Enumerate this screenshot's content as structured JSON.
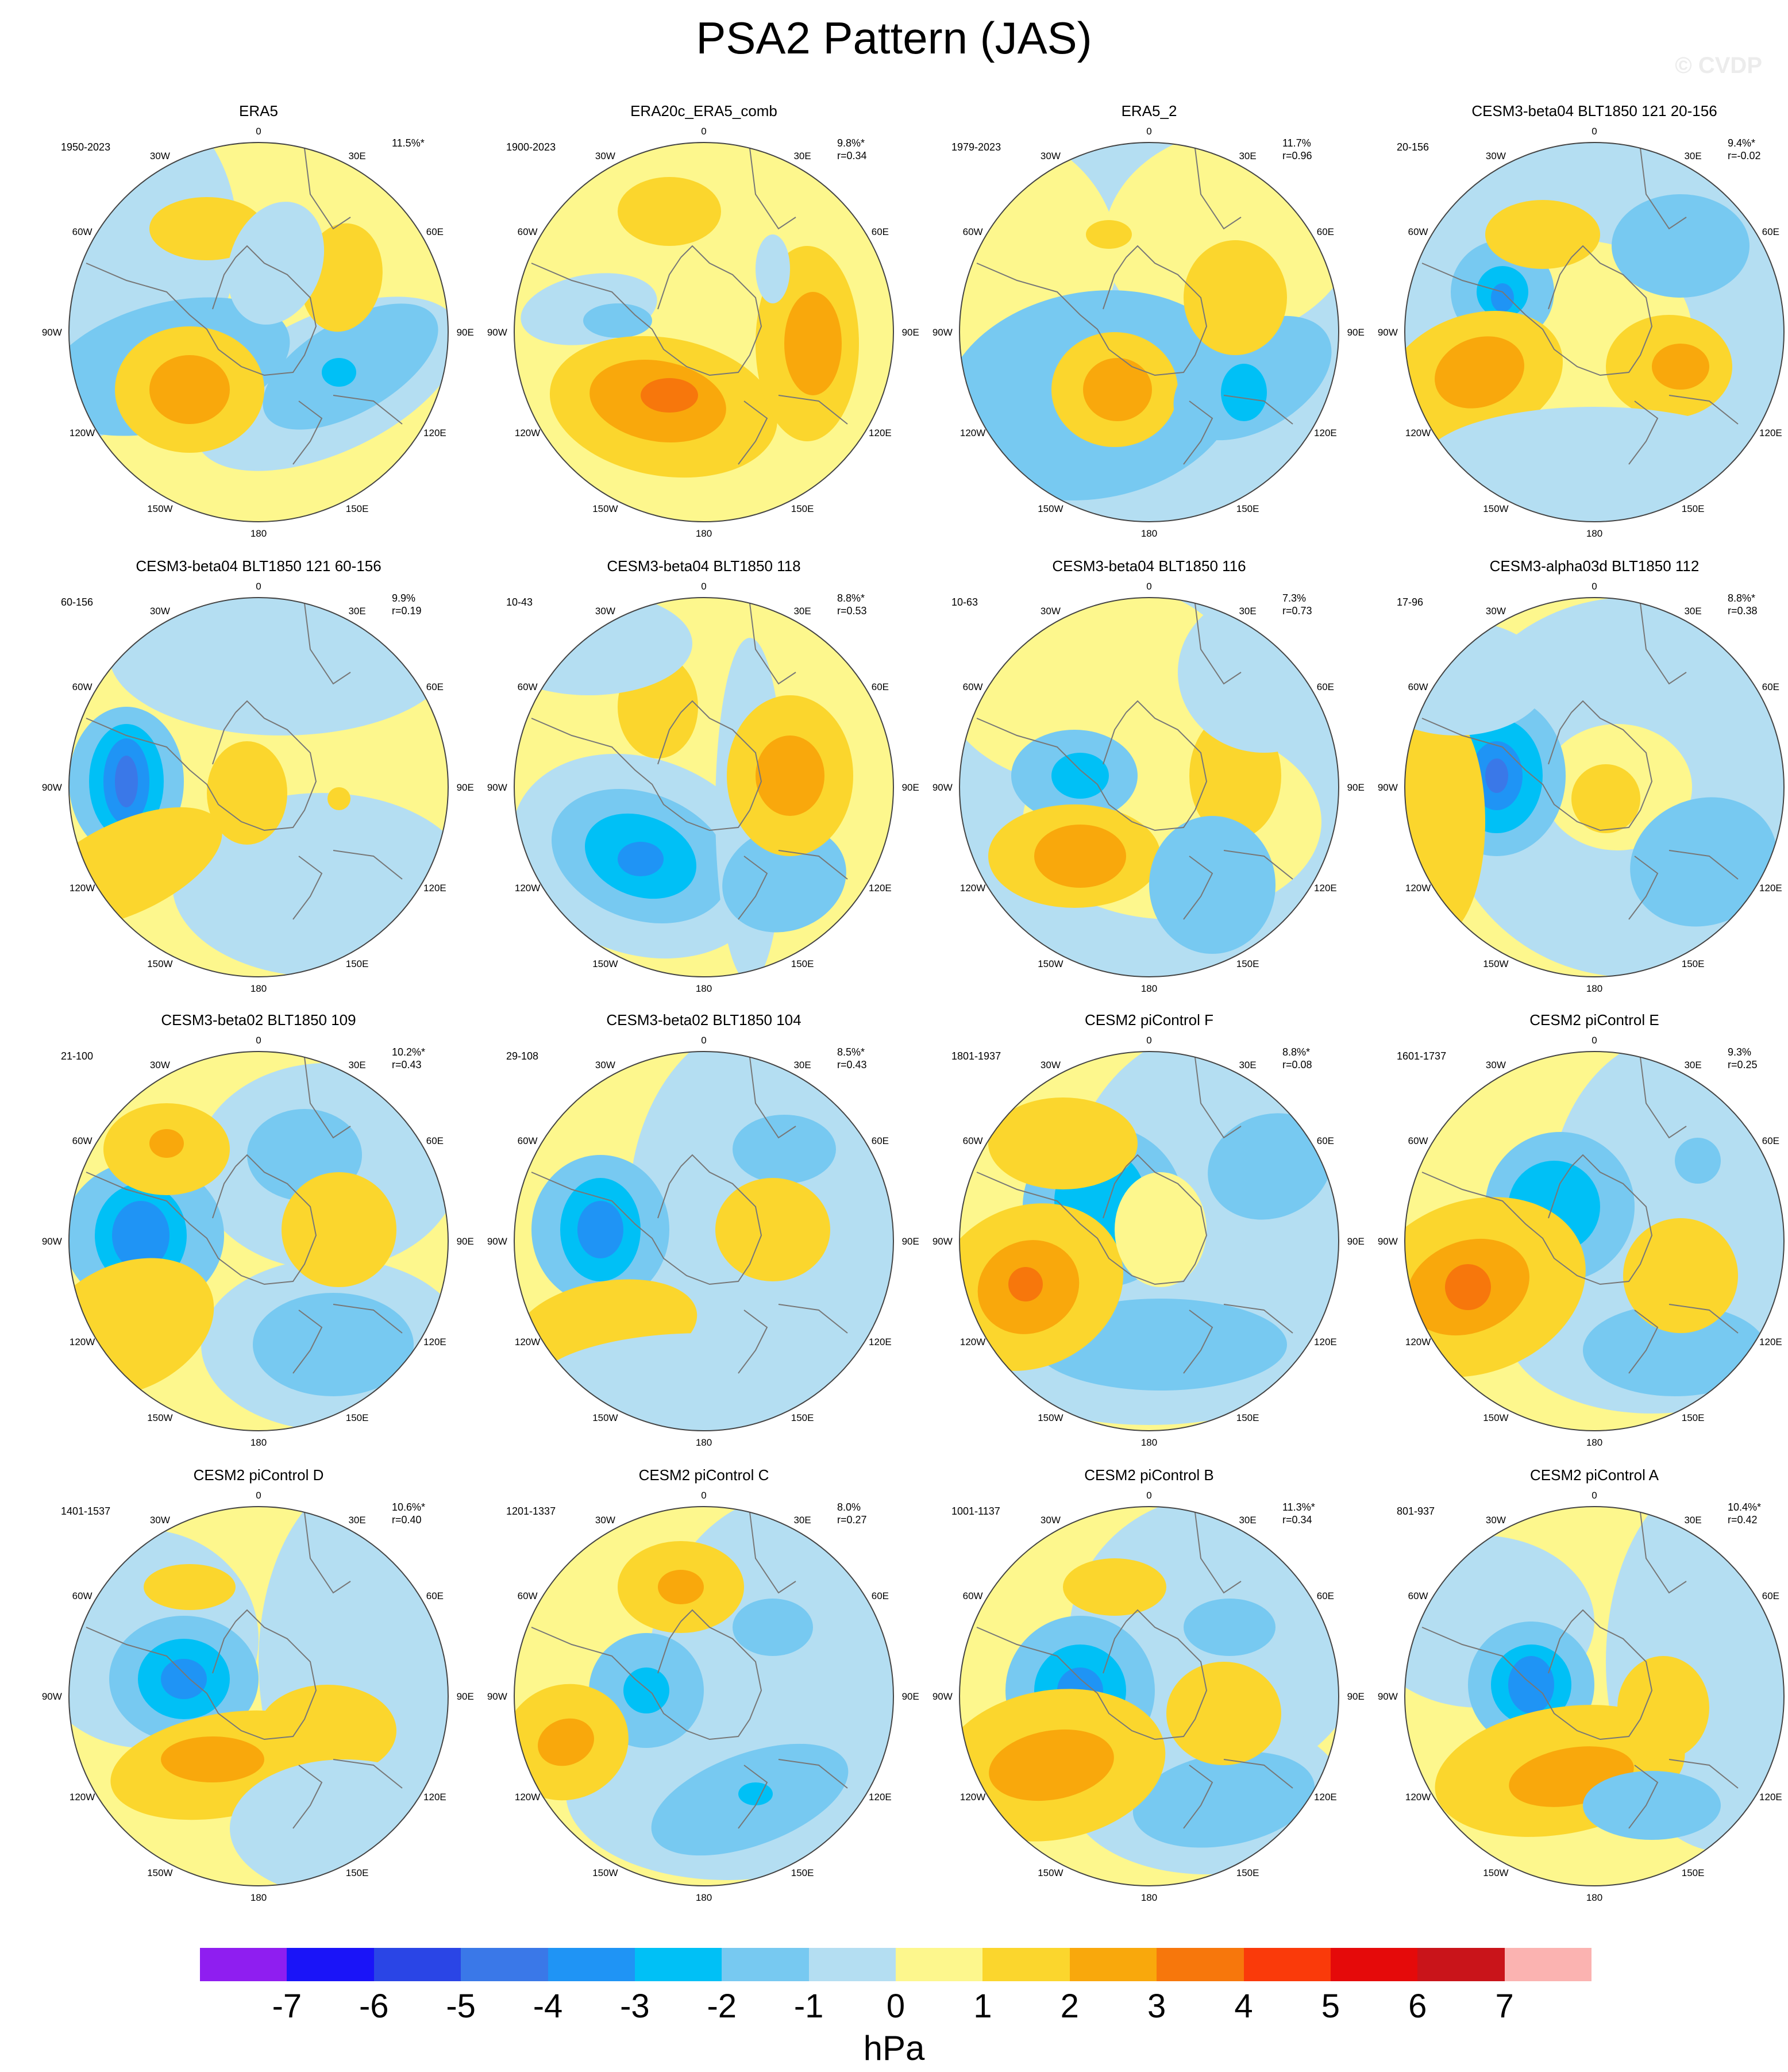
{
  "title": "PSA2 Pattern (JAS)",
  "watermark": "© CVDP",
  "lon_labels": [
    "0",
    "30E",
    "60E",
    "90E",
    "120E",
    "150E",
    "180",
    "150W",
    "120W",
    "90W",
    "60W",
    "30W"
  ],
  "panels": [
    {
      "title": "ERA5",
      "years": "1950-2023",
      "pct": "11.5%*",
      "r": ""
    },
    {
      "title": "ERA20c_ERA5_comb",
      "years": "1900-2023",
      "pct": "9.8%*",
      "r": "r=0.34"
    },
    {
      "title": "ERA5_2",
      "years": "1979-2023",
      "pct": "11.7%",
      "r": "r=0.96"
    },
    {
      "title": "CESM3-beta04 BLT1850 121 20-156",
      "years": "20-156",
      "pct": "9.4%*",
      "r": "r=-0.02"
    },
    {
      "title": "CESM3-beta04 BLT1850 121 60-156",
      "years": "60-156",
      "pct": "9.9%",
      "r": "r=0.19"
    },
    {
      "title": "CESM3-beta04 BLT1850 118",
      "years": "10-43",
      "pct": "8.8%*",
      "r": "r=0.53"
    },
    {
      "title": "CESM3-beta04 BLT1850 116",
      "years": "10-63",
      "pct": "7.3%",
      "r": "r=0.73"
    },
    {
      "title": "CESM3-alpha03d BLT1850 112",
      "years": "17-96",
      "pct": "8.8%*",
      "r": "r=0.38"
    },
    {
      "title": "CESM3-beta02 BLT1850 109",
      "years": "21-100",
      "pct": "10.2%*",
      "r": "r=0.43"
    },
    {
      "title": "CESM3-beta02 BLT1850 104",
      "years": "29-108",
      "pct": "8.5%*",
      "r": "r=0.43"
    },
    {
      "title": "CESM2 piControl F",
      "years": "1801-1937",
      "pct": "8.8%*",
      "r": "r=0.08"
    },
    {
      "title": "CESM2 piControl E",
      "years": "1601-1737",
      "pct": "9.3%",
      "r": "r=0.25"
    },
    {
      "title": "CESM2 piControl D",
      "years": "1401-1537",
      "pct": "10.6%*",
      "r": "r=0.40"
    },
    {
      "title": "CESM2 piControl C",
      "years": "1201-1337",
      "pct": "8.0%",
      "r": "r=0.27"
    },
    {
      "title": "CESM2 piControl B",
      "years": "1001-1137",
      "pct": "11.3%*",
      "r": "r=0.34"
    },
    {
      "title": "CESM2 piControl A",
      "years": "801-937",
      "pct": "10.4%*",
      "r": "r=0.42"
    }
  ],
  "colorbar": {
    "colors": [
      "#8f1ef0",
      "#1a14f8",
      "#2a45e6",
      "#3a78e8",
      "#1f94f5",
      "#00c0f6",
      "#77c9f1",
      "#b4def2",
      "#fdf78d",
      "#fbd62d",
      "#f9a80c",
      "#f7770c",
      "#fa3a0a",
      "#e50a0a",
      "#c9141a",
      "#fbb3b1"
    ],
    "ticks": [
      "-7",
      "-6",
      "-5",
      "-4",
      "-3",
      "-2",
      "-1",
      "0",
      "1",
      "2",
      "3",
      "4",
      "5",
      "6",
      "7"
    ],
    "units": "hPa"
  }
}
